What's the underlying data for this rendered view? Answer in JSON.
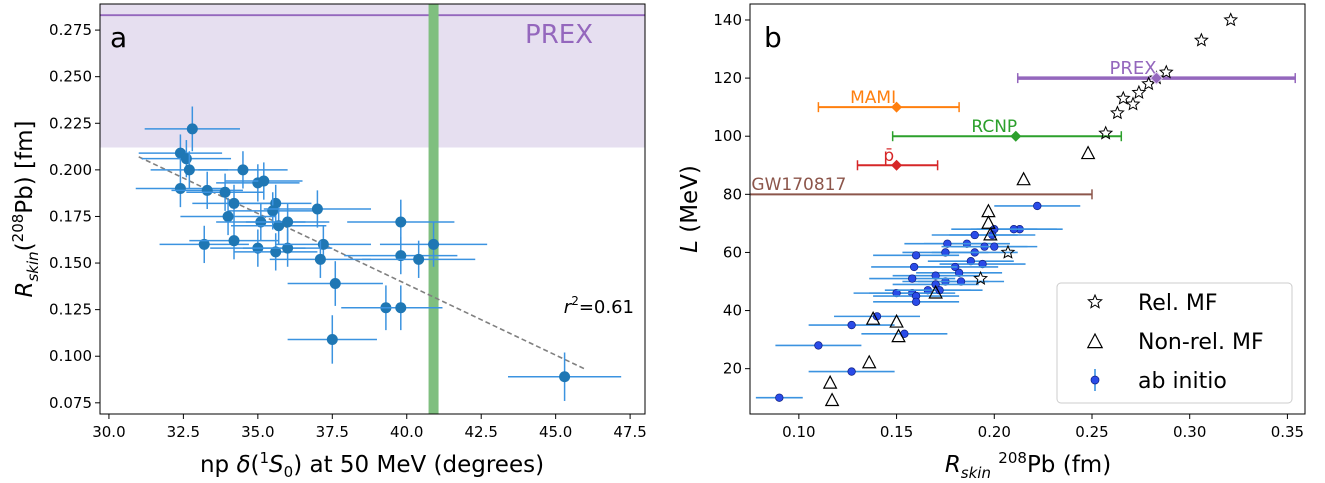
{
  "chart_data": [
    {
      "panel_label": "a",
      "type": "scatter",
      "title": "",
      "xlabel": "np δ(¹S₀) at 50 MeV (degrees)",
      "ylabel": "R_skin(²⁰⁸Pb) [fm]",
      "xlim": [
        29.7,
        48.0
      ],
      "ylim": [
        0.069,
        0.289
      ],
      "xticks": [
        "30.0",
        "32.5",
        "35.0",
        "37.5",
        "40.0",
        "42.5",
        "45.0",
        "47.5"
      ],
      "yticks": [
        "0.075",
        "0.100",
        "0.125",
        "0.150",
        "0.175",
        "0.200",
        "0.225",
        "0.250",
        "0.275"
      ],
      "grid": false,
      "colors": {
        "points": "#1f77b4",
        "errorbars": "#3b93e0",
        "band": "#e6dff0",
        "prex_line": "#9467bd",
        "vline": "#7fbf7f",
        "fit": "#808080"
      },
      "prex": {
        "label": "PREX",
        "band_y": [
          0.212,
          0.289
        ],
        "line_y": 0.283
      },
      "vertical_band_x": 40.9,
      "fit_line": {
        "x": [
          31.0,
          46.0
        ],
        "y": [
          0.207,
          0.093
        ]
      },
      "annotation": "r²=0.61",
      "points": [
        {
          "x": 32.8,
          "y": 0.222,
          "xerr": 1.6,
          "yerr": 0.012
        },
        {
          "x": 32.4,
          "y": 0.209,
          "xerr": 1.4,
          "yerr": 0.01
        },
        {
          "x": 32.6,
          "y": 0.206,
          "xerr": 1.5,
          "yerr": 0.01
        },
        {
          "x": 32.7,
          "y": 0.2,
          "xerr": 1.3,
          "yerr": 0.01
        },
        {
          "x": 32.4,
          "y": 0.19,
          "xerr": 1.5,
          "yerr": 0.01
        },
        {
          "x": 33.3,
          "y": 0.189,
          "xerr": 1.2,
          "yerr": 0.01
        },
        {
          "x": 33.9,
          "y": 0.188,
          "xerr": 1.3,
          "yerr": 0.01
        },
        {
          "x": 34.5,
          "y": 0.2,
          "xerr": 1.5,
          "yerr": 0.01
        },
        {
          "x": 35.0,
          "y": 0.193,
          "xerr": 1.4,
          "yerr": 0.01
        },
        {
          "x": 35.2,
          "y": 0.194,
          "xerr": 1.3,
          "yerr": 0.01
        },
        {
          "x": 34.2,
          "y": 0.182,
          "xerr": 1.4,
          "yerr": 0.01
        },
        {
          "x": 35.6,
          "y": 0.182,
          "xerr": 1.2,
          "yerr": 0.01
        },
        {
          "x": 35.5,
          "y": 0.178,
          "xerr": 1.5,
          "yerr": 0.01
        },
        {
          "x": 34.0,
          "y": 0.175,
          "xerr": 1.6,
          "yerr": 0.01
        },
        {
          "x": 35.1,
          "y": 0.172,
          "xerr": 1.5,
          "yerr": 0.01
        },
        {
          "x": 35.7,
          "y": 0.17,
          "xerr": 1.6,
          "yerr": 0.01
        },
        {
          "x": 36.0,
          "y": 0.172,
          "xerr": 1.4,
          "yerr": 0.01
        },
        {
          "x": 37.0,
          "y": 0.179,
          "xerr": 1.8,
          "yerr": 0.01
        },
        {
          "x": 39.8,
          "y": 0.172,
          "xerr": 1.8,
          "yerr": 0.012
        },
        {
          "x": 33.2,
          "y": 0.16,
          "xerr": 1.5,
          "yerr": 0.01
        },
        {
          "x": 34.2,
          "y": 0.162,
          "xerr": 1.5,
          "yerr": 0.01
        },
        {
          "x": 35.0,
          "y": 0.158,
          "xerr": 1.6,
          "yerr": 0.01
        },
        {
          "x": 35.6,
          "y": 0.156,
          "xerr": 1.4,
          "yerr": 0.01
        },
        {
          "x": 36.0,
          "y": 0.158,
          "xerr": 1.5,
          "yerr": 0.01
        },
        {
          "x": 37.2,
          "y": 0.16,
          "xerr": 1.6,
          "yerr": 0.01
        },
        {
          "x": 37.1,
          "y": 0.152,
          "xerr": 1.7,
          "yerr": 0.01
        },
        {
          "x": 39.8,
          "y": 0.154,
          "xerr": 1.9,
          "yerr": 0.01
        },
        {
          "x": 40.4,
          "y": 0.152,
          "xerr": 1.9,
          "yerr": 0.01
        },
        {
          "x": 40.9,
          "y": 0.16,
          "xerr": 1.8,
          "yerr": 0.012
        },
        {
          "x": 37.6,
          "y": 0.139,
          "xerr": 1.6,
          "yerr": 0.012
        },
        {
          "x": 39.3,
          "y": 0.126,
          "xerr": 1.5,
          "yerr": 0.012
        },
        {
          "x": 39.8,
          "y": 0.126,
          "xerr": 1.4,
          "yerr": 0.012
        },
        {
          "x": 37.5,
          "y": 0.109,
          "xerr": 1.5,
          "yerr": 0.013
        },
        {
          "x": 45.3,
          "y": 0.089,
          "xerr": 1.9,
          "yerr": 0.013
        }
      ]
    },
    {
      "panel_label": "b",
      "type": "scatter",
      "title": "",
      "xlabel": "R_skin ²⁰⁸Pb (fm)",
      "ylabel": "L (MeV)",
      "xlim": [
        0.075,
        0.359
      ],
      "ylim": [
        4.4,
        145.5
      ],
      "xticks": [
        "0.10",
        "0.15",
        "0.20",
        "0.25",
        "0.30",
        "0.35"
      ],
      "yticks": [
        "20",
        "40",
        "60",
        "80",
        "100",
        "120",
        "140"
      ],
      "grid": false,
      "colors": {
        "rel_mf": "#000000",
        "non_rel_mf": "#000000",
        "ab_initio": "#1f3fe0",
        "ab_initio_err": "#3b93e0",
        "PREX": "#9467bd",
        "MAMI": "#ff7f0e",
        "RCNP": "#2ca02c",
        "pbar": "#d62728",
        "GW170817": "#8c564b"
      },
      "legend": {
        "placement": "lower right",
        "entries": [
          "Rel. MF",
          "Non-rel. MF",
          "ab initio"
        ]
      },
      "constraints": [
        {
          "label": "PREX",
          "x": 0.283,
          "x_low": 0.212,
          "x_high": 0.354,
          "y": 120
        },
        {
          "label": "MAMI",
          "x": 0.15,
          "x_low": 0.11,
          "x_high": 0.182,
          "y": 110
        },
        {
          "label": "RCNP",
          "x": 0.211,
          "x_low": 0.148,
          "x_high": 0.265,
          "y": 100
        },
        {
          "label": "p̄",
          "x": 0.15,
          "x_low": 0.13,
          "x_high": 0.171,
          "y": 90
        },
        {
          "label": "GW170817",
          "x_low": 0.075,
          "x_high": 0.25,
          "y": 80
        }
      ],
      "rel_mf": [
        {
          "x": 0.321,
          "y": 140
        },
        {
          "x": 0.306,
          "y": 133
        },
        {
          "x": 0.288,
          "y": 122
        },
        {
          "x": 0.283,
          "y": 120
        },
        {
          "x": 0.279,
          "y": 118
        },
        {
          "x": 0.274,
          "y": 115
        },
        {
          "x": 0.271,
          "y": 111
        },
        {
          "x": 0.266,
          "y": 113
        },
        {
          "x": 0.263,
          "y": 108
        },
        {
          "x": 0.257,
          "y": 101
        },
        {
          "x": 0.207,
          "y": 60
        },
        {
          "x": 0.193,
          "y": 51
        }
      ],
      "non_rel_mf": [
        {
          "x": 0.248,
          "y": 94
        },
        {
          "x": 0.215,
          "y": 85
        },
        {
          "x": 0.197,
          "y": 74
        },
        {
          "x": 0.197,
          "y": 70
        },
        {
          "x": 0.198,
          "y": 66
        },
        {
          "x": 0.17,
          "y": 46
        },
        {
          "x": 0.138,
          "y": 37
        },
        {
          "x": 0.15,
          "y": 36
        },
        {
          "x": 0.151,
          "y": 31
        },
        {
          "x": 0.136,
          "y": 22
        },
        {
          "x": 0.116,
          "y": 15
        },
        {
          "x": 0.117,
          "y": 9
        }
      ],
      "ab_initio": [
        {
          "x": 0.222,
          "y": 76,
          "xerr": 0.022
        },
        {
          "x": 0.213,
          "y": 68,
          "xerr": 0.022
        },
        {
          "x": 0.21,
          "y": 68,
          "xerr": 0.022
        },
        {
          "x": 0.2,
          "y": 68,
          "xerr": 0.022
        },
        {
          "x": 0.199,
          "y": 66,
          "xerr": 0.022
        },
        {
          "x": 0.19,
          "y": 66,
          "xerr": 0.022
        },
        {
          "x": 0.186,
          "y": 63,
          "xerr": 0.022
        },
        {
          "x": 0.176,
          "y": 63,
          "xerr": 0.022
        },
        {
          "x": 0.195,
          "y": 62,
          "xerr": 0.022
        },
        {
          "x": 0.2,
          "y": 62,
          "xerr": 0.022
        },
        {
          "x": 0.19,
          "y": 60,
          "xerr": 0.022
        },
        {
          "x": 0.175,
          "y": 60,
          "xerr": 0.022
        },
        {
          "x": 0.16,
          "y": 59,
          "xerr": 0.022
        },
        {
          "x": 0.188,
          "y": 57,
          "xerr": 0.022
        },
        {
          "x": 0.194,
          "y": 56,
          "xerr": 0.022
        },
        {
          "x": 0.18,
          "y": 55,
          "xerr": 0.022
        },
        {
          "x": 0.159,
          "y": 55,
          "xerr": 0.022
        },
        {
          "x": 0.182,
          "y": 53,
          "xerr": 0.022
        },
        {
          "x": 0.17,
          "y": 52,
          "xerr": 0.022
        },
        {
          "x": 0.175,
          "y": 50,
          "xerr": 0.022
        },
        {
          "x": 0.183,
          "y": 50,
          "xerr": 0.022
        },
        {
          "x": 0.158,
          "y": 51,
          "xerr": 0.022
        },
        {
          "x": 0.17,
          "y": 49,
          "xerr": 0.022
        },
        {
          "x": 0.166,
          "y": 47,
          "xerr": 0.022
        },
        {
          "x": 0.158,
          "y": 46,
          "xerr": 0.022
        },
        {
          "x": 0.15,
          "y": 46,
          "xerr": 0.022
        },
        {
          "x": 0.16,
          "y": 45,
          "xerr": 0.022
        },
        {
          "x": 0.172,
          "y": 47,
          "xerr": 0.022
        },
        {
          "x": 0.16,
          "y": 43,
          "xerr": 0.022
        },
        {
          "x": 0.14,
          "y": 38,
          "xerr": 0.022
        },
        {
          "x": 0.127,
          "y": 35,
          "xerr": 0.022
        },
        {
          "x": 0.154,
          "y": 32,
          "xerr": 0.022
        },
        {
          "x": 0.11,
          "y": 28,
          "xerr": 0.022
        },
        {
          "x": 0.127,
          "y": 19,
          "xerr": 0.022
        },
        {
          "x": 0.09,
          "y": 10,
          "xerr": 0.012
        }
      ]
    }
  ]
}
